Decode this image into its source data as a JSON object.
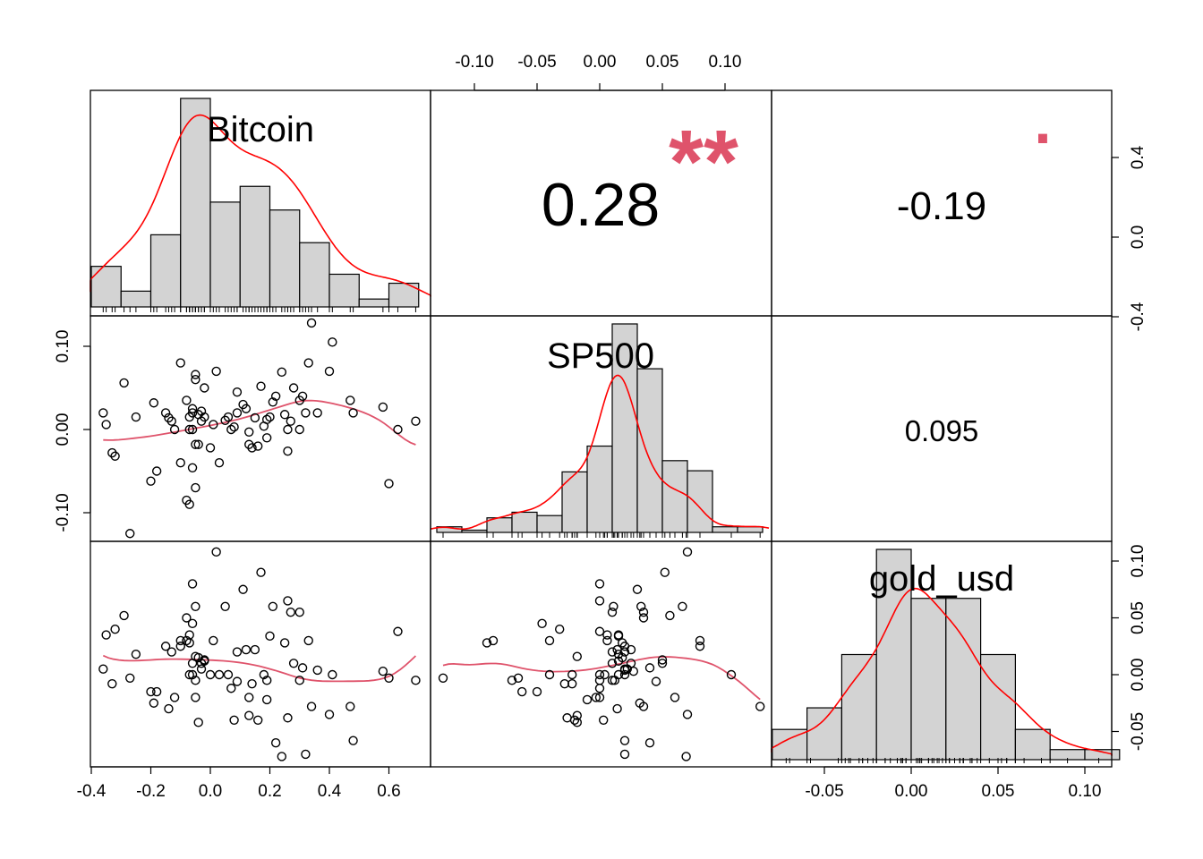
{
  "chart_data": {
    "type": "scatter",
    "variables": [
      "Bitcoin",
      "SP500",
      "gold_usd"
    ],
    "colors": {
      "density": "#ff0000",
      "smooth": "#DF536B",
      "stars": "#DF536B",
      "bar_fill": "#d3d3d3",
      "frame": "#000000"
    },
    "axes": {
      "bitcoin_ticks": [
        -0.4,
        -0.2,
        0.0,
        0.2,
        0.4,
        0.6
      ],
      "bitcoin_tick_labels": [
        "-0.4",
        "-0.2",
        "0.0",
        "0.2",
        "0.4",
        "0.6"
      ],
      "sp500_ticks": [
        -0.1,
        -0.05,
        0.0,
        0.05,
        0.1
      ],
      "sp500_tick_labels": [
        "-0.10",
        "-0.05",
        "0.00",
        "0.05",
        "0.10"
      ],
      "sp500_left_ticks": [
        -0.1,
        0.0,
        0.1
      ],
      "sp500_left_tick_labels": [
        "-0.10",
        "0.00",
        "0.10"
      ],
      "gold_ticks": [
        -0.05,
        0.0,
        0.05,
        0.1
      ],
      "gold_tick_labels": [
        "-0.05",
        "0.00",
        "0.05",
        "0.10"
      ],
      "density_ticks": [
        -0.4,
        0.0,
        0.4
      ],
      "density_tick_labels": [
        "-0.4",
        "0.0",
        "0.4"
      ]
    },
    "correlations": [
      {
        "pair": "Bitcoin-SP500",
        "value": "0.28",
        "stars": "**"
      },
      {
        "pair": "Bitcoin-gold_usd",
        "value": "-0.19",
        "stars": "."
      },
      {
        "pair": "SP500-gold_usd",
        "value": "0.095",
        "stars": ""
      }
    ],
    "histograms": {
      "Bitcoin": {
        "breaks": [
          -0.4,
          -0.3,
          -0.2,
          -0.1,
          0.0,
          0.1,
          0.2,
          0.3,
          0.4,
          0.5,
          0.6,
          0.7
        ],
        "density": [
          0.36,
          0.14,
          0.64,
          1.85,
          0.93,
          1.07,
          0.86,
          0.57,
          0.29,
          0.07,
          0.21
        ]
      },
      "SP500": {
        "breaks": [
          -0.13,
          -0.11,
          -0.09,
          -0.07,
          -0.05,
          -0.03,
          -0.01,
          0.01,
          0.03,
          0.05,
          0.07,
          0.09,
          0.11,
          0.13
        ],
        "density": [
          0.5,
          0.2,
          1.3,
          1.8,
          1.5,
          5.4,
          7.7,
          18.6,
          14.6,
          6.4,
          5.5,
          0.5,
          0.5
        ]
      },
      "gold_usd": {
        "breaks": [
          -0.08,
          -0.06,
          -0.04,
          -0.02,
          0.0,
          0.02,
          0.04,
          0.06,
          0.08,
          0.1,
          0.12
        ],
        "density": [
          2.1,
          3.6,
          7.3,
          14.6,
          11.2,
          11.2,
          7.3,
          2.1,
          0.7,
          0.7
        ]
      }
    },
    "points": {
      "bitcoin": [
        -0.36,
        -0.35,
        -0.33,
        -0.32,
        -0.29,
        -0.27,
        -0.25,
        -0.2,
        -0.19,
        -0.18,
        -0.15,
        -0.14,
        -0.13,
        -0.12,
        -0.1,
        -0.1,
        -0.08,
        -0.08,
        -0.07,
        -0.07,
        -0.07,
        -0.06,
        -0.06,
        -0.06,
        -0.06,
        -0.05,
        -0.05,
        -0.05,
        -0.04,
        -0.04,
        -0.03,
        -0.03,
        -0.02,
        -0.02,
        0.0,
        0.01,
        0.02,
        0.03,
        0.06,
        0.07,
        0.08,
        0.09,
        0.09,
        0.11,
        0.12,
        0.13,
        0.13,
        0.14,
        0.15,
        0.16,
        0.17,
        0.18,
        0.19,
        0.2,
        0.21,
        0.22,
        0.24,
        0.25,
        0.26,
        0.27,
        0.28,
        0.3,
        0.31,
        0.32,
        0.33,
        0.34,
        0.36,
        0.4,
        0.41,
        0.47,
        0.48,
        0.58,
        0.6,
        0.63,
        0.69,
        -0.05,
        0.05,
        0.19,
        0.26,
        0.3
      ],
      "sp500": [
        0.02,
        0.006,
        -0.028,
        -0.032,
        0.056,
        -0.125,
        0.015,
        -0.062,
        0.032,
        -0.05,
        0.02,
        0.014,
        0.01,
        0.0,
        0.08,
        -0.04,
        0.035,
        -0.085,
        0.015,
        -0.09,
        0.0,
        -0.046,
        0.025,
        0.02,
        0.0,
        0.066,
        0.06,
        -0.07,
        0.018,
        -0.018,
        0.01,
        0.022,
        0.015,
        0.05,
        -0.022,
        0.006,
        0.07,
        -0.04,
        0.015,
        0.0,
        0.003,
        0.045,
        0.02,
        0.03,
        0.025,
        -0.003,
        -0.018,
        -0.022,
        0.014,
        -0.02,
        0.052,
        0.004,
        -0.01,
        0.015,
        0.033,
        0.04,
        0.069,
        0.018,
        -0.026,
        0.01,
        0.05,
        0.035,
        0.04,
        0.02,
        0.08,
        0.128,
        0.02,
        0.07,
        0.105,
        0.035,
        0.02,
        0.027,
        -0.065,
        0.0,
        0.01,
        -0.018,
        0.011,
        0.012,
        0.0,
        0.0
      ],
      "gold": [
        0.005,
        0.035,
        -0.008,
        0.04,
        0.052,
        -0.003,
        0.018,
        -0.015,
        -0.025,
        -0.015,
        0.025,
        -0.03,
        0.02,
        -0.02,
        0.025,
        0.03,
        0.05,
        0.03,
        0.035,
        0.028,
        0.0,
        0.045,
        0.01,
        0.0,
        0.08,
        0.06,
        -0.02,
        -0.005,
        0.015,
        -0.042,
        0.01,
        0.005,
        0.012,
        0.013,
        0.0,
        0.03,
        0.108,
        0.0,
        0.0,
        -0.012,
        -0.04,
        -0.006,
        0.02,
        0.075,
        0.022,
        -0.02,
        -0.036,
        -0.008,
        0.022,
        -0.04,
        0.09,
        0.0,
        -0.022,
        0.034,
        0.06,
        -0.06,
        -0.072,
        0.028,
        -0.038,
        0.055,
        0.01,
        0.055,
        0.006,
        -0.07,
        0.03,
        -0.028,
        0.004,
        -0.035,
        0.0,
        -0.028,
        -0.058,
        0.003,
        -0.003,
        0.038,
        -0.005,
        0.016,
        0.06,
        -0.005,
        0.065,
        -0.005
      ]
    },
    "labels": {
      "var1": "Bitcoin",
      "var2": "SP500",
      "var3": "gold_usd"
    }
  }
}
